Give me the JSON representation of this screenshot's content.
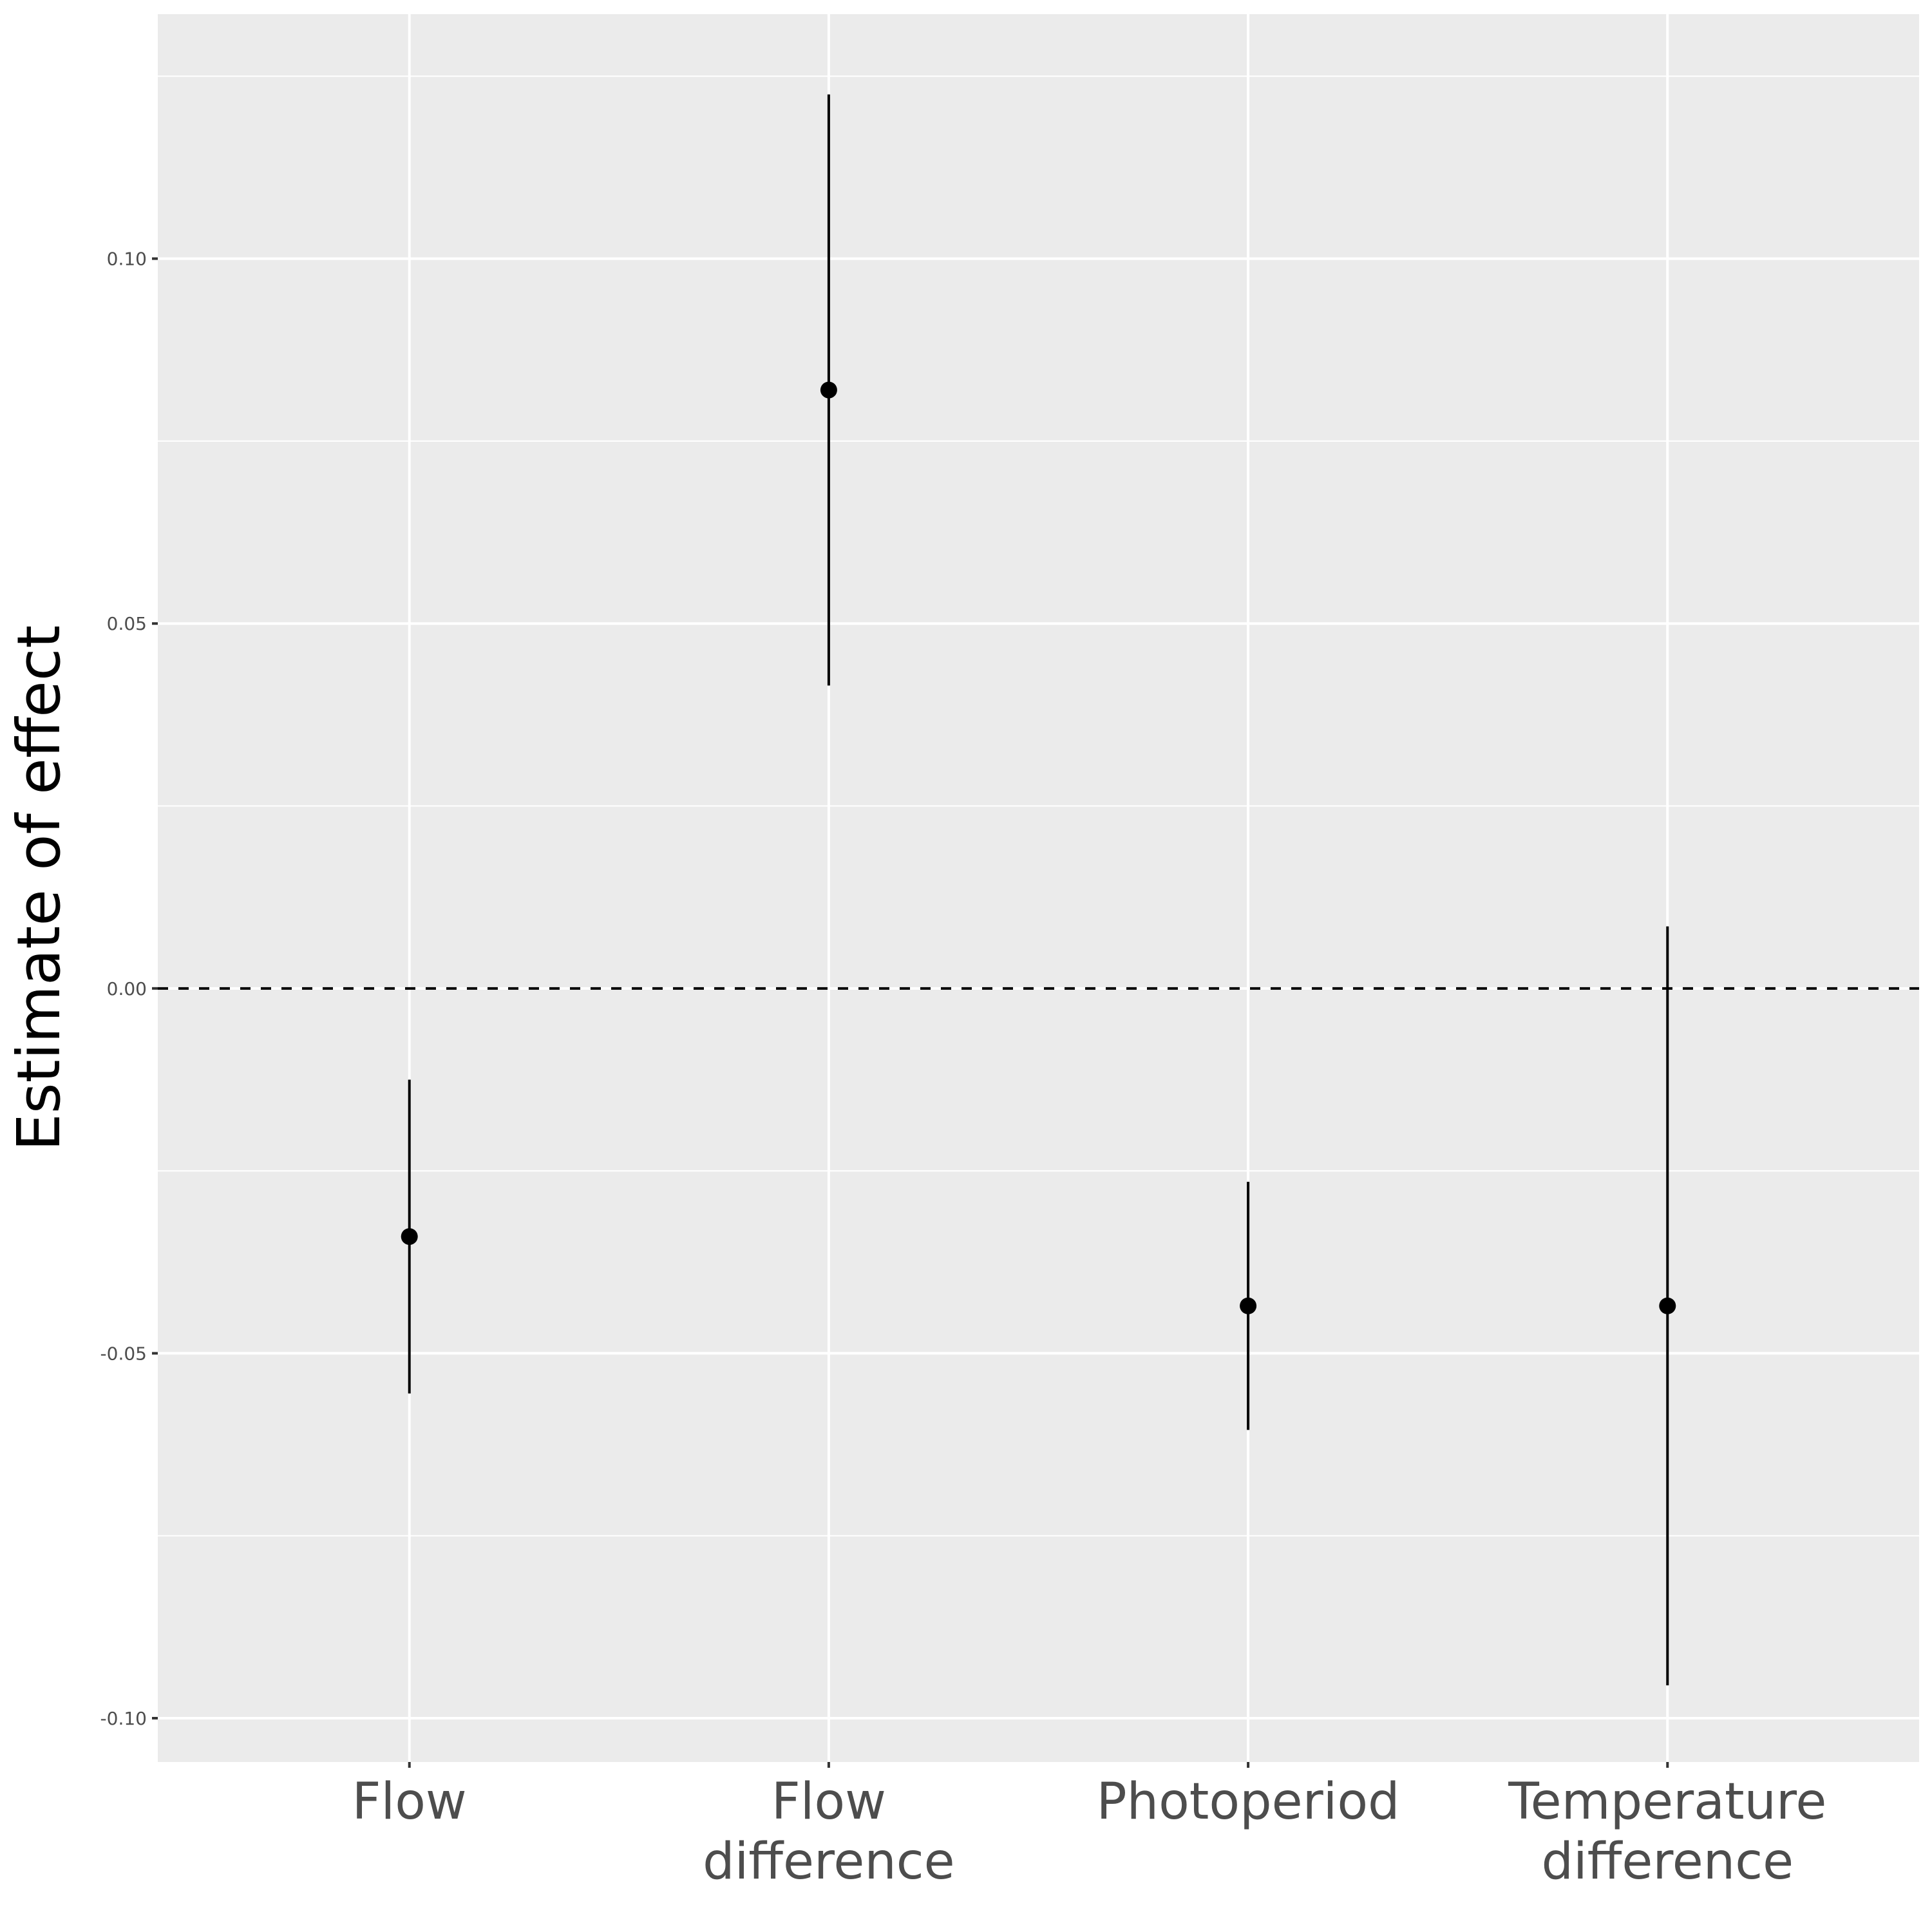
{
  "chart_data": {
    "type": "scatter",
    "title": "",
    "xlabel": "",
    "ylabel": "Estimate of effect",
    "categories": [
      "Flow",
      "Flow\ndifference",
      "Photoperiod",
      "Temperature\ndifference"
    ],
    "estimates": [
      -0.034,
      0.082,
      -0.0435,
      -0.0435
    ],
    "lower": [
      -0.0555,
      0.0415,
      -0.0605,
      -0.0955
    ],
    "upper": [
      -0.0125,
      0.1225,
      -0.0265,
      0.0085
    ],
    "reference_line": 0,
    "ylim": [
      -0.106,
      0.1335
    ],
    "y_ticks": [
      -0.1,
      -0.05,
      0.0,
      0.05,
      0.1
    ],
    "y_tick_labels": [
      "-0.10",
      "-0.05",
      "0.00",
      "0.05",
      "0.10"
    ],
    "grid": true,
    "legend": "none",
    "colors": {
      "panel": "#ebebeb",
      "grid": "#ffffff",
      "marks": "#000000",
      "tick_text": "#4d4d4d"
    }
  }
}
